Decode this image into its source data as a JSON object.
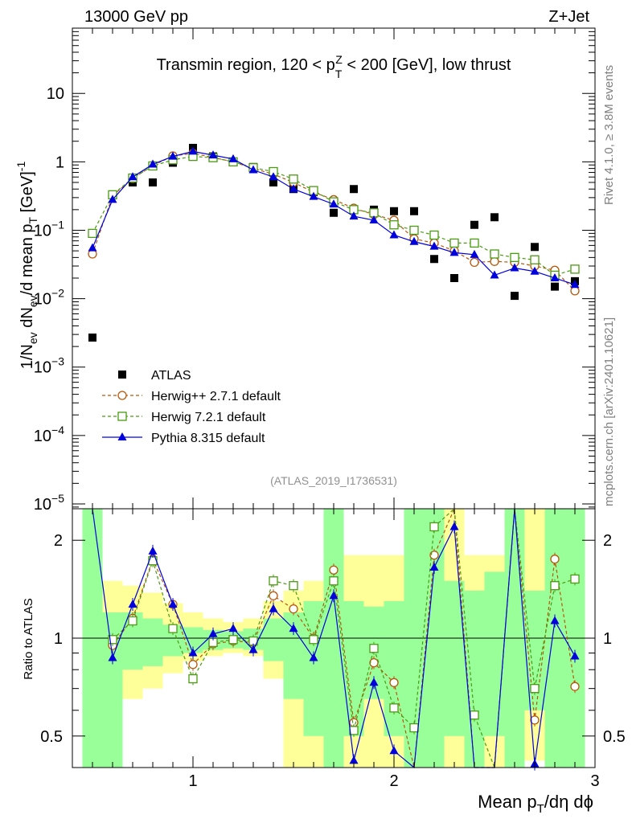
{
  "header": {
    "left": "13000 GeV pp",
    "right": "Z+Jet"
  },
  "side_labels": {
    "rivet": "Rivet 4.1.0, ≥ 3.8M events",
    "site": "mcplots.cern.ch [arXiv:2401.10621]"
  },
  "colors": {
    "atlas": "#000000",
    "herwigpp": "#b8560b",
    "herwig7": "#4a9a12",
    "pythia": "#0000dd",
    "band_yellow": "#ffff99",
    "band_green": "#99ff99",
    "ref": "#808080"
  },
  "chart_data": [
    {
      "type": "scatter",
      "panel": "main",
      "title": "Transmin region, 120 < p_T^Z < 200 [GeV], low thrust",
      "title_parts": {
        "pre": "Transmin region, 120 < p",
        "sub": "T",
        "sup": "Z",
        "post": " < 200 [GeV], low thrust"
      },
      "ylabel": "1/N_ev dN_ev/d mean p_T [GeV]^-1",
      "ylabel_parts": {
        "a": "1/N",
        "a_sub": "ev",
        "b": " dN",
        "b_sub": "ev",
        "c": "/d mean p",
        "c_sub": "T",
        "d": " [GeV]",
        "d_sup": "-1"
      },
      "yscale": "log",
      "ylim": [
        8.5e-06,
        90
      ],
      "xlim": [
        0.4,
        3.0
      ],
      "ytick_labels": [
        {
          "v": 1e-05,
          "base": "10",
          "exp": "−5"
        },
        {
          "v": 0.0001,
          "base": "10",
          "exp": "−4"
        },
        {
          "v": 0.001,
          "base": "10",
          "exp": "−3"
        },
        {
          "v": 0.01,
          "base": "10",
          "exp": "−2"
        },
        {
          "v": 0.1,
          "base": "10",
          "exp": "−1"
        },
        {
          "v": 1,
          "base": "1",
          "exp": ""
        },
        {
          "v": 10,
          "base": "10",
          "exp": ""
        }
      ],
      "ref_label": "(ATLAS_2019_I1736531)",
      "x": [
        0.5,
        0.6,
        0.7,
        0.8,
        0.9,
        1.0,
        1.1,
        1.2,
        1.3,
        1.4,
        1.5,
        1.6,
        1.7,
        1.8,
        1.9,
        2.0,
        2.1,
        2.2,
        2.3,
        2.4,
        2.5,
        2.6,
        2.7,
        2.8,
        2.9
      ],
      "legend": [
        {
          "key": "atlas",
          "label": "ATLAS",
          "style": "square",
          "line": "none"
        },
        {
          "key": "herwigpp",
          "label": "Herwig++ 2.7.1 default",
          "style": "circle-open",
          "line": "dashed"
        },
        {
          "key": "herwig7",
          "label": "Herwig 7.2.1 default",
          "style": "square-open",
          "line": "dashed"
        },
        {
          "key": "pythia",
          "label": "Pythia 8.315 default",
          "style": "triangle",
          "line": "solid"
        }
      ],
      "series": [
        {
          "key": "atlas",
          "name": "ATLAS",
          "values": [
            0.0027,
            0.33,
            0.5,
            0.5,
            0.97,
            1.6,
            1.2,
            1.0,
            0.84,
            0.5,
            0.4,
            0.36,
            0.18,
            0.4,
            0.2,
            0.19,
            0.19,
            0.038,
            0.02,
            0.12,
            0.155,
            0.011,
            0.057,
            0.015,
            0.018
          ]
        },
        {
          "key": "herwigpp",
          "name": "Herwig++ 2.7.1 default",
          "values": [
            0.045,
            0.32,
            0.57,
            0.88,
            1.22,
            1.33,
            1.16,
            1.0,
            0.8,
            0.66,
            0.5,
            0.36,
            0.28,
            0.21,
            0.17,
            0.14,
            0.075,
            0.065,
            0.05,
            0.034,
            0.035,
            0.034,
            0.03,
            0.026,
            0.013
          ]
        },
        {
          "key": "herwig7",
          "name": "Herwig 7.2.1 default",
          "values": [
            0.09,
            0.33,
            0.58,
            0.87,
            1.07,
            1.2,
            1.15,
            1.0,
            0.82,
            0.72,
            0.56,
            0.38,
            0.26,
            0.2,
            0.18,
            0.12,
            0.1,
            0.085,
            0.065,
            0.065,
            0.045,
            0.04,
            0.037,
            0.022,
            0.027
          ]
        },
        {
          "key": "pythia",
          "name": "Pythia 8.315 default",
          "values": [
            0.055,
            0.28,
            0.6,
            0.92,
            1.2,
            1.42,
            1.25,
            1.1,
            0.76,
            0.6,
            0.4,
            0.31,
            0.24,
            0.16,
            0.14,
            0.085,
            0.068,
            0.058,
            0.047,
            0.044,
            0.022,
            0.028,
            0.025,
            0.02,
            0.016
          ]
        }
      ]
    },
    {
      "type": "line",
      "panel": "ratio",
      "ylabel": "Ratio to ATLAS",
      "xlabel": "Mean p_T/dη dϕ",
      "xlabel_parts": {
        "a": "Mean p",
        "a_sub": "T",
        "b": "/dη dϕ"
      },
      "yscale": "log",
      "ylim": [
        0.4,
        2.5
      ],
      "xlim": [
        0.4,
        3.0
      ],
      "yticks": [
        0.5,
        1,
        2
      ],
      "ytick_labels": [
        "0.5",
        "1",
        "2"
      ],
      "xticks": [
        1,
        2,
        3
      ],
      "xtick_labels": [
        "1",
        "2",
        "3"
      ],
      "bands": {
        "x_edges": [
          0.45,
          0.55,
          0.65,
          0.75,
          0.85,
          0.95,
          1.05,
          1.15,
          1.25,
          1.35,
          1.45,
          1.55,
          1.65,
          1.75,
          1.85,
          1.95,
          2.05,
          2.15,
          2.25,
          2.35,
          2.45,
          2.55,
          2.65,
          2.75,
          2.85,
          2.95
        ],
        "yellow": [
          [
            0.4,
            2.5
          ],
          [
            0.4,
            1.5
          ],
          [
            0.65,
            1.45
          ],
          [
            0.7,
            1.38
          ],
          [
            0.78,
            1.28
          ],
          [
            0.85,
            1.2
          ],
          [
            0.88,
            1.15
          ],
          [
            0.9,
            1.12
          ],
          [
            0.88,
            1.15
          ],
          [
            0.75,
            1.3
          ],
          [
            0.4,
            1.4
          ],
          [
            0.4,
            1.5
          ],
          [
            0.4,
            2.5
          ],
          [
            0.4,
            1.8
          ],
          [
            0.4,
            1.8
          ],
          [
            0.4,
            1.8
          ],
          [
            0.4,
            2.5
          ],
          [
            0.4,
            2.5
          ],
          [
            0.4,
            2.5
          ],
          [
            0.4,
            1.8
          ],
          [
            0.4,
            1.8
          ],
          [
            0.4,
            2.5
          ],
          [
            0.42,
            2.5
          ],
          [
            0.4,
            2.5
          ],
          [
            0.4,
            2.5
          ]
        ],
        "green": [
          [
            0.4,
            2.5
          ],
          [
            0.4,
            1.2
          ],
          [
            0.8,
            1.2
          ],
          [
            0.82,
            1.15
          ],
          [
            0.88,
            1.1
          ],
          [
            0.9,
            1.08
          ],
          [
            0.92,
            1.06
          ],
          [
            0.93,
            1.05
          ],
          [
            0.92,
            1.07
          ],
          [
            0.85,
            1.15
          ],
          [
            0.65,
            1.2
          ],
          [
            0.5,
            1.3
          ],
          [
            0.4,
            2.5
          ],
          [
            0.5,
            1.3
          ],
          [
            0.65,
            1.25
          ],
          [
            0.5,
            1.3
          ],
          [
            0.4,
            2.5
          ],
          [
            0.4,
            2.5
          ],
          [
            0.5,
            1.5
          ],
          [
            0.4,
            1.4
          ],
          [
            0.5,
            1.6
          ],
          [
            0.4,
            2.5
          ],
          [
            0.6,
            1.4
          ],
          [
            0.4,
            2.5
          ],
          [
            0.4,
            2.5
          ]
        ]
      },
      "x": [
        0.5,
        0.6,
        0.7,
        0.8,
        0.9,
        1.0,
        1.1,
        1.2,
        1.3,
        1.4,
        1.5,
        1.6,
        1.7,
        1.8,
        1.9,
        2.0,
        2.1,
        2.2,
        2.3,
        2.4,
        2.5,
        2.6,
        2.7,
        2.8,
        2.9
      ],
      "series": [
        {
          "key": "herwigpp",
          "name": "Herwig++ 2.7.1 default",
          "values": [
            null,
            0.95,
            1.15,
            1.75,
            1.27,
            0.83,
            0.96,
            0.98,
            0.97,
            1.35,
            1.23,
            1.0,
            1.62,
            0.55,
            0.84,
            0.73,
            0.4,
            1.8,
            2.5,
            0.4,
            0.4,
            2.5,
            0.56,
            1.75,
            0.71
          ]
        },
        {
          "key": "herwig7",
          "name": "Herwig 7.2.1 default",
          "values": [
            null,
            0.99,
            1.13,
            1.73,
            1.07,
            0.75,
            0.97,
            0.99,
            0.98,
            1.5,
            1.45,
            0.99,
            1.5,
            0.52,
            0.93,
            0.61,
            0.53,
            2.2,
            2.5,
            0.58,
            0.4,
            2.5,
            0.7,
            1.45,
            1.52
          ]
        },
        {
          "key": "pythia",
          "name": "Pythia 8.315 default",
          "values": [
            2.5,
            0.87,
            1.27,
            1.85,
            1.27,
            0.9,
            1.03,
            1.07,
            0.92,
            1.23,
            1.07,
            0.87,
            1.35,
            0.42,
            0.73,
            0.45,
            0.37,
            1.65,
            2.2,
            0.37,
            0.37,
            2.5,
            0.41,
            1.13,
            0.88
          ]
        }
      ]
    }
  ]
}
